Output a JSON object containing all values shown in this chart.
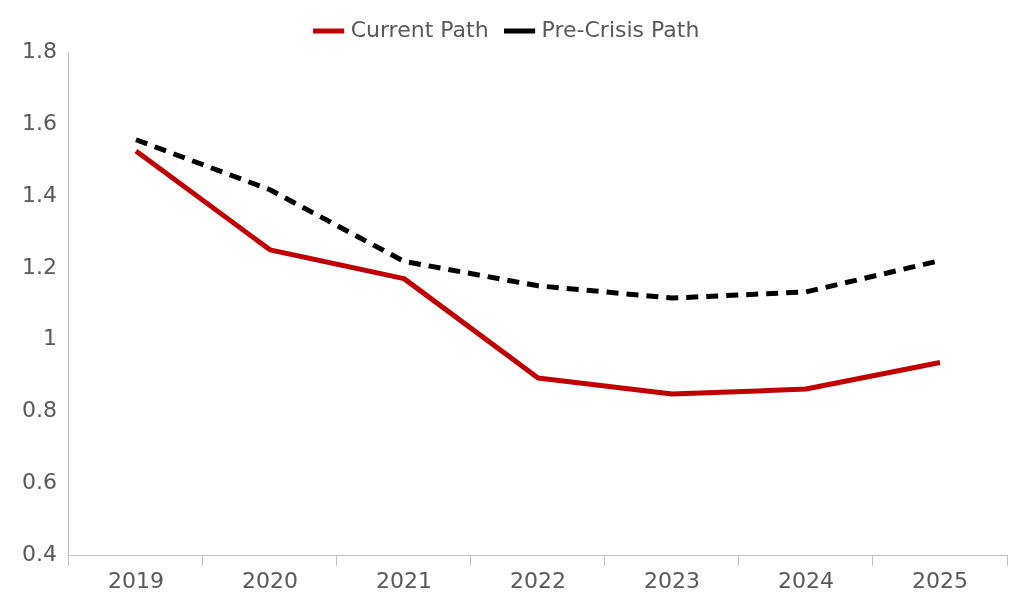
{
  "chart_data": {
    "type": "line",
    "categories": [
      "2019",
      "2020",
      "2021",
      "2022",
      "2023",
      "2024",
      "2025"
    ],
    "series": [
      {
        "name": "Current Path",
        "color": "#c00000",
        "line_style": "solid",
        "values": [
          1.525,
          1.25,
          1.17,
          0.894,
          0.849,
          0.863,
          0.937
        ]
      },
      {
        "name": "Pre-Crisis Path",
        "color": "#000000",
        "line_style": "dashed",
        "values": [
          1.556,
          1.417,
          1.218,
          1.15,
          1.116,
          1.133,
          1.22
        ]
      }
    ],
    "ylim": [
      0.4,
      1.8
    ],
    "yticks": [
      0.4,
      0.6,
      0.8,
      1,
      1.2,
      1.4,
      1.6,
      1.8
    ],
    "grid": false,
    "legend": "top",
    "marker": "none"
  }
}
